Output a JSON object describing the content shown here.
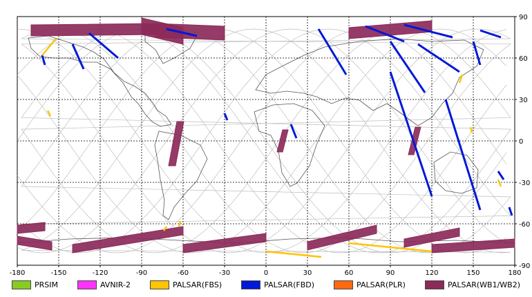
{
  "chart_data": {
    "type": "map",
    "title": "",
    "xlim": [
      -180,
      180
    ],
    "ylim": [
      -90,
      90
    ],
    "x_ticks": [
      "-180",
      "-150",
      "-120",
      "-90",
      "-60",
      "-30",
      "0",
      "30",
      "60",
      "90",
      "120",
      "150",
      "180"
    ],
    "y_ticks": [
      "90",
      "60",
      "30",
      "0",
      "-30",
      "-60",
      "-90"
    ],
    "grid": true,
    "legend_placement": "bottom",
    "series": [
      {
        "name": "PRSIM",
        "color": "#88cc22"
      },
      {
        "name": "AVNIR-2",
        "color": "#ff33ff"
      },
      {
        "name": "PALSAR(FBS)",
        "color": "#ffc400"
      },
      {
        "name": "PALSAR(FBD)",
        "color": "#0018d8"
      },
      {
        "name": "PALSAR(PLR)",
        "color": "#ff6a10"
      },
      {
        "name": "PALSAR(WB1/WB2)",
        "color": "#8c2a5a"
      }
    ],
    "wb_swaths": [
      {
        "from": [
          -170,
          80
        ],
        "to": [
          -80,
          81
        ],
        "width": 8
      },
      {
        "from": [
          -90,
          83
        ],
        "to": [
          -60,
          76
        ],
        "width": 12
      },
      {
        "from": [
          -80,
          80
        ],
        "to": [
          -30,
          78
        ],
        "width": 10
      },
      {
        "from": [
          60,
          78
        ],
        "to": [
          120,
          83
        ],
        "width": 8
      },
      {
        "from": [
          -62,
          14
        ],
        "to": [
          -68,
          -18
        ],
        "width": 5
      },
      {
        "from": [
          14,
          8
        ],
        "to": [
          10,
          -8
        ],
        "width": 4
      },
      {
        "from": [
          110,
          10
        ],
        "to": [
          105,
          -10
        ],
        "width": 4
      },
      {
        "from": [
          -180,
          -64
        ],
        "to": [
          -160,
          -62
        ],
        "width": 6
      },
      {
        "from": [
          -180,
          -72
        ],
        "to": [
          -155,
          -76
        ],
        "width": 6
      },
      {
        "from": [
          -140,
          -78
        ],
        "to": [
          -60,
          -65
        ],
        "width": 6
      },
      {
        "from": [
          -60,
          -78
        ],
        "to": [
          0,
          -70
        ],
        "width": 6
      },
      {
        "from": [
          30,
          -76
        ],
        "to": [
          80,
          -64
        ],
        "width": 6
      },
      {
        "from": [
          100,
          -74
        ],
        "to": [
          140,
          -66
        ],
        "width": 6
      },
      {
        "from": [
          120,
          -78
        ],
        "to": [
          180,
          -74
        ],
        "width": 6
      }
    ],
    "fbd_tracks": [
      {
        "from": [
          -162,
          62
        ],
        "to": [
          -160,
          55
        ]
      },
      {
        "from": [
          -140,
          70
        ],
        "to": [
          -132,
          52
        ]
      },
      {
        "from": [
          -128,
          78
        ],
        "to": [
          -107,
          60
        ]
      },
      {
        "from": [
          -72,
          81
        ],
        "to": [
          -50,
          76
        ]
      },
      {
        "from": [
          38,
          81
        ],
        "to": [
          58,
          48
        ]
      },
      {
        "from": [
          72,
          83
        ],
        "to": [
          100,
          72
        ]
      },
      {
        "from": [
          100,
          84
        ],
        "to": [
          135,
          75
        ]
      },
      {
        "from": [
          155,
          80
        ],
        "to": [
          170,
          75
        ]
      },
      {
        "from": [
          90,
          72
        ],
        "to": [
          115,
          35
        ]
      },
      {
        "from": [
          110,
          70
        ],
        "to": [
          140,
          50
        ]
      },
      {
        "from": [
          150,
          72
        ],
        "to": [
          155,
          55
        ]
      },
      {
        "from": [
          90,
          50
        ],
        "to": [
          120,
          -40
        ]
      },
      {
        "from": [
          130,
          30
        ],
        "to": [
          155,
          -50
        ]
      },
      {
        "from": [
          -30,
          20
        ],
        "to": [
          -28,
          15
        ]
      },
      {
        "from": [
          18,
          12
        ],
        "to": [
          22,
          2
        ]
      },
      {
        "from": [
          168,
          -22
        ],
        "to": [
          172,
          -28
        ]
      },
      {
        "from": [
          176,
          -48
        ],
        "to": [
          178,
          -54
        ]
      }
    ],
    "fbs_tracks": [
      {
        "from": [
          -162,
          62
        ],
        "to": [
          -152,
          74
        ]
      },
      {
        "from": [
          -158,
          22
        ],
        "to": [
          -156,
          18
        ]
      },
      {
        "from": [
          -72,
          -62
        ],
        "to": [
          -74,
          -65
        ]
      },
      {
        "from": [
          -62,
          -58
        ],
        "to": [
          -63,
          -62
        ]
      },
      {
        "from": [
          140,
          42
        ],
        "to": [
          142,
          48
        ]
      },
      {
        "from": [
          148,
          10
        ],
        "to": [
          149,
          6
        ]
      },
      {
        "from": [
          168,
          -28
        ],
        "to": [
          170,
          -33
        ]
      },
      {
        "from": [
          0,
          -80
        ],
        "to": [
          40,
          -84
        ]
      },
      {
        "from": [
          60,
          -74
        ],
        "to": [
          120,
          -80
        ]
      }
    ]
  }
}
